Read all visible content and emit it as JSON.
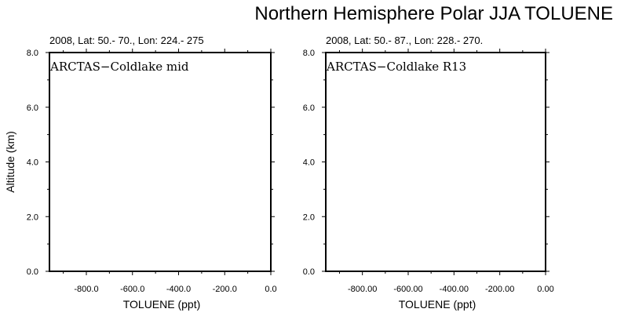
{
  "figure": {
    "title": "Northern Hemisphere Polar JJA TOLUENE"
  },
  "chart_data": [
    {
      "type": "line",
      "title": "ARCTAS−Coldlake mid",
      "subtitle": "2008, Lat:  50.- 70., Lon: 224.- 275",
      "xlabel": "TOLUENE (ppt)",
      "ylabel": "Altitude (km)",
      "xlim": [
        -960,
        0
      ],
      "ylim": [
        0,
        8
      ],
      "x_ticks": [
        -800,
        -600,
        -400,
        -200,
        0
      ],
      "x_tick_labels": [
        "-800.0",
        "-600.0",
        "-400.0",
        "-200.0",
        "0.0"
      ],
      "y_ticks": [
        0,
        2,
        4,
        6,
        8
      ],
      "y_tick_labels": [
        "0.0",
        "2.0",
        "4.0",
        "6.0",
        "8.0"
      ],
      "grid": false,
      "series": []
    },
    {
      "type": "line",
      "title": "ARCTAS−Coldlake R13",
      "subtitle": "2008, Lat:  50.- 87., Lon: 228.- 270.",
      "xlabel": "TOLUENE (ppt)",
      "ylabel": "",
      "xlim": [
        -960,
        0
      ],
      "ylim": [
        0,
        8
      ],
      "x_ticks": [
        -800,
        -600,
        -400,
        -200,
        0
      ],
      "x_tick_labels": [
        "-800.00",
        "-600.00",
        "-400.00",
        "-200.00",
        "0.00"
      ],
      "y_ticks": [
        0,
        2,
        4,
        6,
        8
      ],
      "y_tick_labels": [
        "0.0",
        "2.0",
        "4.0",
        "6.0",
        "8.0"
      ],
      "grid": false,
      "series": []
    }
  ]
}
